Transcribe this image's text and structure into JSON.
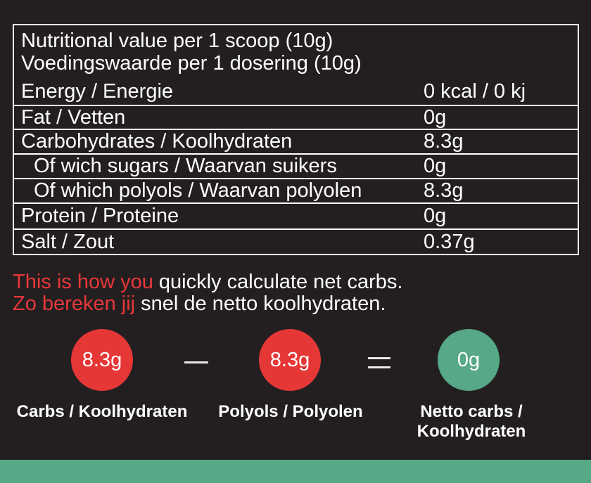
{
  "table": {
    "heading_en": "Nutritional value per 1 scoop (10g)",
    "heading_nl": "Voedingswaarde per 1 dosering (10g)",
    "rows": [
      {
        "label": "Energy / Energie",
        "value": "0 kcal / 0 kj"
      },
      {
        "label": "Fat / Vetten",
        "value": "0g"
      },
      {
        "label": "Carbohydrates / Koolhydraten",
        "value": "8.3g"
      },
      {
        "label": "Of wich sugars / Waarvan suikers",
        "value": "0g"
      },
      {
        "label": "Of which polyols / Waarvan polyolen",
        "value": "8.3g"
      },
      {
        "label": "Protein / Proteine",
        "value": "0g"
      },
      {
        "label": "Salt / Zout",
        "value": "0.37g"
      }
    ]
  },
  "promo": {
    "line1_red": "This is how you",
    "line1_rest": " quickly calculate net carbs.",
    "line2_red": "Zo bereken jij",
    "line2_rest": " snel de netto koolhydraten."
  },
  "equation": {
    "carbs_value": "8.3g",
    "polyols_value": "8.3g",
    "net_value": "0g",
    "carbs_caption": "Carbs / Koolhydraten",
    "polyols_caption": "Polyols / Polyolen",
    "net_caption_line1": "Netto carbs /",
    "net_caption_line2": "Koolhydraten"
  },
  "colors": {
    "background": "#231f20",
    "accent_red": "#e63737",
    "accent_green": "#56a886"
  }
}
